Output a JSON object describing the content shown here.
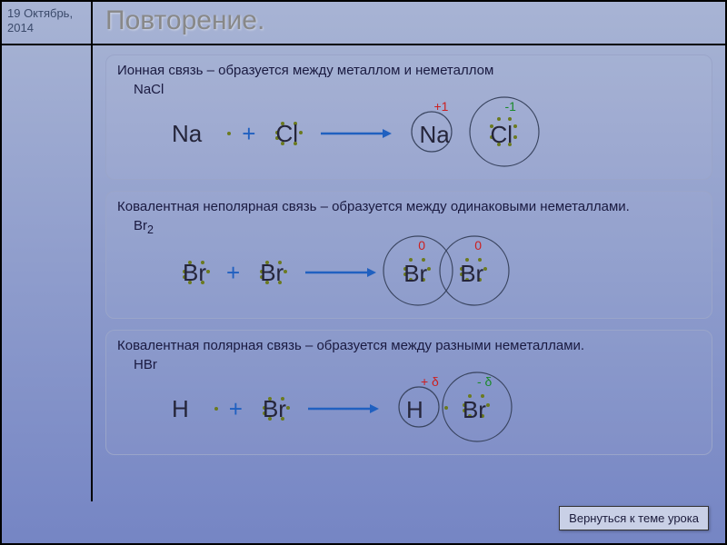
{
  "date": "19 Октябрь, 2014",
  "title": "Повторение.",
  "back_button": "Вернуться к теме урока",
  "colors": {
    "arrow": "#2060c0",
    "circle_stroke": "#3a4560",
    "dot": "#6b7a1f",
    "charge_pos": "#cc2020",
    "charge_neg": "#1a8a2a"
  },
  "cards": [
    {
      "desc": "Ионная связь – образуется между металлом и неметаллом",
      "formula": "NaCl",
      "left": [
        {
          "sym": "Na",
          "dots_r": 1
        },
        {
          "sym": "Cl",
          "dots_around": 7
        }
      ],
      "right": [
        {
          "sym": "Na",
          "charge": "+1",
          "charge_color": "red",
          "circle_small": true
        },
        {
          "sym": "Cl",
          "charge": "-1",
          "charge_color": "green",
          "dots_around": 8,
          "circle_large": true
        }
      ],
      "overlap": false
    },
    {
      "desc": "Ковалентная неполярная связь – образуется между одинаковыми неметаллами.",
      "formula": "Br₂",
      "left": [
        {
          "sym": "Br",
          "dots_around": 7
        },
        {
          "sym": "Br",
          "dots_around": 7
        }
      ],
      "right": [
        {
          "sym": "Br",
          "charge": "0",
          "charge_color": "red",
          "dots_around": 7,
          "circle_large": true
        },
        {
          "sym": "Br",
          "charge": "0",
          "charge_color": "red",
          "dots_around": 7,
          "circle_large": true
        }
      ],
      "overlap": true
    },
    {
      "desc": "Ковалентная полярная связь – образуется между разными неметаллами.",
      "formula": "HBr",
      "left": [
        {
          "sym": "H",
          "dots_r": 1
        },
        {
          "sym": "Br",
          "dots_around": 7
        }
      ],
      "right": [
        {
          "sym": "H",
          "charge": "+ δ",
          "charge_color": "red",
          "dots_r": 1,
          "circle_small": true
        },
        {
          "sym": "Br",
          "charge": "- δ",
          "charge_color": "green",
          "dots_around": 7,
          "circle_large": true
        }
      ],
      "overlap": true
    }
  ]
}
